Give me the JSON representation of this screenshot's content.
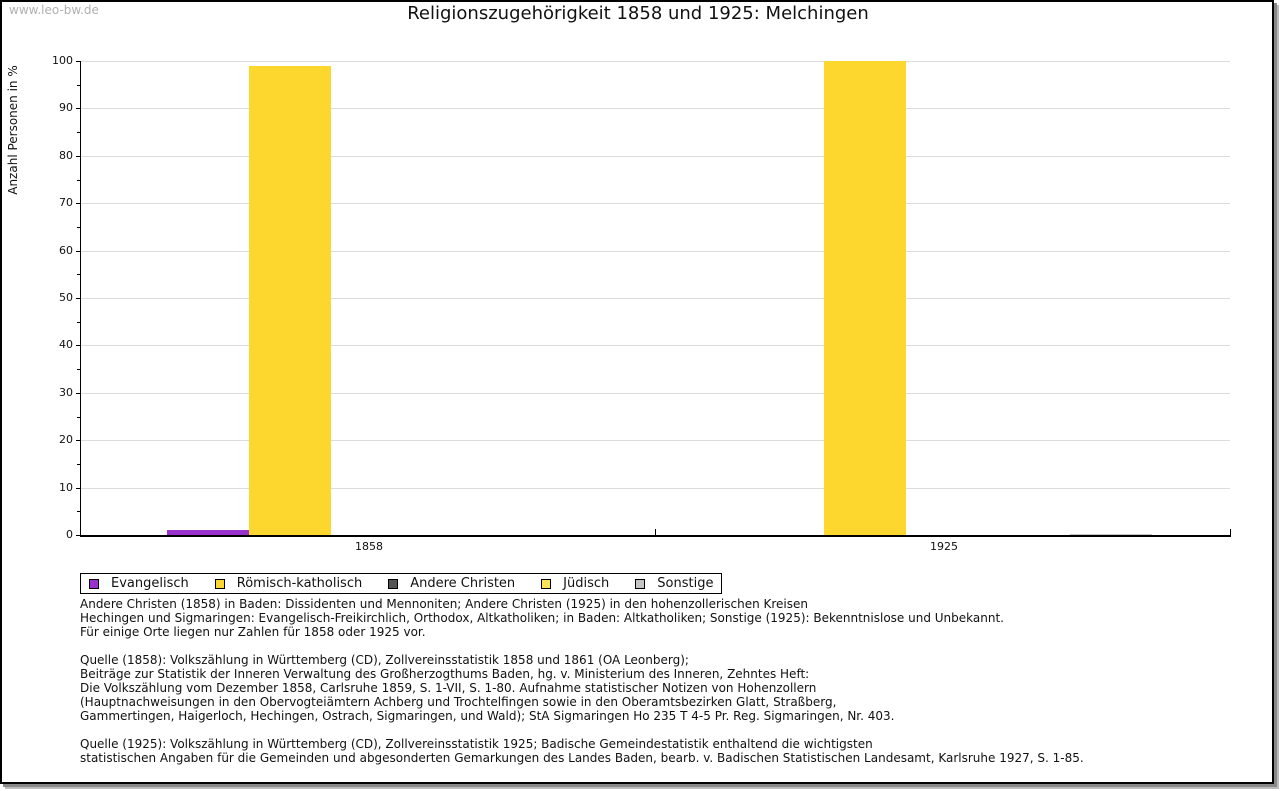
{
  "watermark": "www.leo-bw.de",
  "title": "Religionszugehörigkeit 1858 und 1925: Melchingen",
  "y_axis_label": "Anzahl Personen in %",
  "y_ticks": [
    "0",
    "10",
    "20",
    "30",
    "40",
    "50",
    "60",
    "70",
    "80",
    "90",
    "100"
  ],
  "x_ticks": [
    "1858",
    "1925"
  ],
  "legend": [
    {
      "label": "Evangelisch",
      "color": "#9932cc"
    },
    {
      "label": "Römisch-katholisch",
      "color": "#fdd72d"
    },
    {
      "label": "Andere Christen",
      "color": "#555555"
    },
    {
      "label": "Jüdisch",
      "color": "#fde35a"
    },
    {
      "label": "Sonstige",
      "color": "#c4c4c4"
    }
  ],
  "notes": {
    "line1": "Andere Christen (1858) in Baden: Dissidenten und Mennoniten; Andere Christen (1925) in den hohenzollerischen Kreisen",
    "line2": "Hechingen und Sigmaringen: Evangelisch-Freikirchlich, Orthodox, Altkatholiken; in Baden: Altkatholiken; Sonstige (1925): Bekenntnislose und Unbekannt.",
    "line3": "Für einige Orte liegen nur Zahlen für 1858 oder 1925 vor.",
    "source1858_1": "Quelle (1858): Volkszählung in Württemberg (CD), Zollvereinsstatistik 1858 und 1861 (OA Leonberg);",
    "source1858_2": "Beiträge zur Statistik der Inneren Verwaltung des Großherzogthums Baden, hg. v. Ministerium des Inneren, Zehntes Heft:",
    "source1858_3": "Die Volkszählung vom Dezember 1858, Carlsruhe 1859, S. 1-VII, S. 1-80. Aufnahme statistischer Notizen von Hohenzollern",
    "source1858_4": "(Hauptnachweisungen in den Obervogteiämtern Achberg und Trochtelfingen sowie in den Oberamtsbezirken Glatt, Straßberg,",
    "source1858_5": "Gammertingen, Haigerloch, Hechingen, Ostrach, Sigmaringen, und Wald); StA Sigmaringen Ho 235 T 4-5 Pr. Reg. Sigmaringen, Nr. 403.",
    "source1925_1": "Quelle (1925): Volkszählung in Württemberg (CD), Zollvereinsstatistik 1925; Badische Gemeindestatistik enthaltend die wichtigsten",
    "source1925_2": "statistischen Angaben für die Gemeinden und abgesonderten Gemarkungen des Landes Baden, bearb. v. Badischen Statistischen Landesamt, Karlsruhe 1927, S. 1-85."
  },
  "chart_data": {
    "type": "bar",
    "title": "Religionszugehörigkeit 1858 und 1925: Melchingen",
    "xlabel": "",
    "ylabel": "Anzahl Personen in %",
    "ylim": [
      0,
      100
    ],
    "y_tick_step": 10,
    "grid": true,
    "legend_position": "bottom-left",
    "categories": [
      "1858",
      "1925"
    ],
    "series": [
      {
        "name": "Evangelisch",
        "color": "#9932cc",
        "values": [
          1.0,
          0.0
        ]
      },
      {
        "name": "Römisch-katholisch",
        "color": "#fdd72d",
        "values": [
          99.0,
          99.9
        ]
      },
      {
        "name": "Andere Christen",
        "color": "#555555",
        "values": [
          0.0,
          0.0
        ]
      },
      {
        "name": "Jüdisch",
        "color": "#fde35a",
        "values": [
          0.0,
          0.0
        ]
      },
      {
        "name": "Sonstige",
        "color": "#c4c4c4",
        "values": [
          0.0,
          0.1
        ]
      }
    ]
  }
}
